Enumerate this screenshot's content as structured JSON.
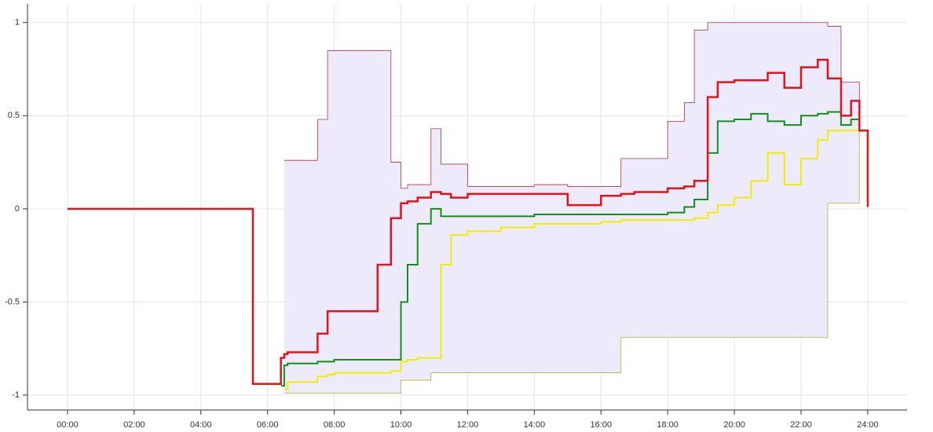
{
  "chart_data": {
    "type": "line",
    "step": "post",
    "grid": true,
    "xlim": [
      -1.2,
      25.18
    ],
    "ylim": [
      -1.08,
      1.1
    ],
    "xticks": [
      {
        "value": 0,
        "label": "00:00"
      },
      {
        "value": 2,
        "label": "02:00"
      },
      {
        "value": 4,
        "label": "04:00"
      },
      {
        "value": 6,
        "label": "06:00"
      },
      {
        "value": 8,
        "label": "08:00"
      },
      {
        "value": 10,
        "label": "10:00"
      },
      {
        "value": 12,
        "label": "12:00"
      },
      {
        "value": 14,
        "label": "14:00"
      },
      {
        "value": 16,
        "label": "16:00"
      },
      {
        "value": 18,
        "label": "18:00"
      },
      {
        "value": 20,
        "label": "20:00"
      },
      {
        "value": 22,
        "label": "22:00"
      },
      {
        "value": 24,
        "label": "24:00"
      }
    ],
    "yticks": [
      -1,
      -0.5,
      0,
      0.5,
      1
    ],
    "fill_between": [
      0,
      1
    ],
    "fill_color": "#eceafb",
    "x": [
      0,
      5.56,
      6.4,
      6.5,
      6.6,
      7.5,
      7.8,
      8.0,
      8.5,
      9.0,
      9.3,
      9.7,
      10.0,
      10.2,
      10.5,
      10.9,
      11.2,
      11.5,
      12.0,
      13.0,
      14.0,
      15.0,
      16.0,
      16.6,
      17.0,
      18.0,
      18.5,
      18.8,
      19.2,
      19.5,
      20.0,
      20.5,
      21.0,
      21.5,
      22.0,
      22.5,
      22.8,
      23.2,
      23.5,
      23.75,
      24.0
    ],
    "series": [
      {
        "color": "#b5313a",
        "width": 0.8,
        "values": [
          null,
          null,
          null,
          0.26,
          0.26,
          0.48,
          0.85,
          0.85,
          0.85,
          0.85,
          0.85,
          0.25,
          0.11,
          0.13,
          0.13,
          0.43,
          0.24,
          0.24,
          0.12,
          0.12,
          0.13,
          0.12,
          0.12,
          0.27,
          0.27,
          0.47,
          0.57,
          0.96,
          1.0,
          1.0,
          1.0,
          1.0,
          1.0,
          1.0,
          1.0,
          1.0,
          0.98,
          0.68,
          0.68,
          0.42,
          null
        ]
      },
      {
        "color": "#b5b23a",
        "width": 0.8,
        "values": [
          null,
          null,
          null,
          -0.99,
          -0.99,
          -0.99,
          -0.99,
          -0.99,
          -0.99,
          -0.99,
          -0.99,
          -0.99,
          -0.92,
          -0.92,
          -0.92,
          -0.88,
          -0.88,
          -0.88,
          -0.88,
          -0.88,
          -0.88,
          -0.88,
          -0.88,
          -0.69,
          -0.69,
          -0.69,
          -0.69,
          -0.69,
          -0.69,
          -0.69,
          -0.69,
          -0.69,
          -0.69,
          -0.69,
          -0.69,
          -0.69,
          0.03,
          0.03,
          0.03,
          0.42,
          null
        ]
      },
      {
        "color": "#f2ee00",
        "width": 2,
        "values": [
          null,
          null,
          null,
          -0.97,
          -0.93,
          -0.9,
          -0.89,
          -0.88,
          -0.88,
          -0.88,
          -0.88,
          -0.87,
          -0.82,
          -0.81,
          -0.8,
          -0.8,
          -0.3,
          -0.14,
          -0.12,
          -0.1,
          -0.08,
          -0.08,
          -0.07,
          -0.06,
          -0.06,
          -0.06,
          -0.06,
          -0.05,
          -0.02,
          0.02,
          0.06,
          0.15,
          0.3,
          0.13,
          0.27,
          0.37,
          0.42,
          0.42,
          0.42,
          0.42,
          null
        ]
      },
      {
        "color": "#14901a",
        "width": 2,
        "values": [
          null,
          null,
          -0.95,
          -0.84,
          -0.83,
          -0.82,
          -0.82,
          -0.81,
          -0.81,
          -0.81,
          -0.81,
          -0.81,
          -0.5,
          -0.3,
          -0.08,
          0.0,
          -0.04,
          -0.04,
          -0.04,
          -0.04,
          -0.03,
          -0.03,
          -0.03,
          -0.03,
          -0.03,
          -0.02,
          0.01,
          0.05,
          0.3,
          0.47,
          0.48,
          0.51,
          0.47,
          0.45,
          0.5,
          0.51,
          0.52,
          0.45,
          0.48,
          0.42,
          null
        ]
      },
      {
        "color": "#e0141a",
        "width": 2.5,
        "values": [
          0,
          -0.94,
          -0.8,
          -0.78,
          -0.77,
          -0.67,
          -0.55,
          -0.55,
          -0.55,
          -0.55,
          -0.3,
          -0.05,
          0.03,
          0.04,
          0.06,
          0.09,
          0.08,
          0.06,
          0.08,
          0.08,
          0.08,
          0.02,
          0.07,
          0.08,
          0.09,
          0.11,
          0.12,
          0.15,
          0.6,
          0.68,
          0.69,
          0.69,
          0.73,
          0.65,
          0.76,
          0.8,
          0.7,
          0.5,
          0.58,
          0.42,
          0.01
        ]
      }
    ]
  }
}
